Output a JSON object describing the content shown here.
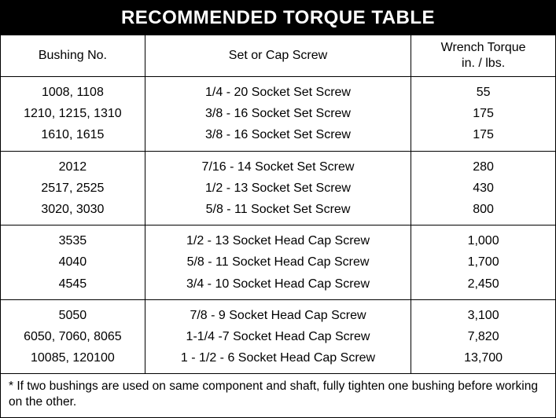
{
  "title": "RECOMMENDED TORQUE TABLE",
  "columns": {
    "c0": "Bushing No.",
    "c1": "Set or Cap Screw",
    "c2": "Wrench Torque\nin. / lbs."
  },
  "groups": [
    {
      "rows": [
        {
          "bushing": "1008, 1108",
          "screw": "1/4 - 20 Socket Set Screw",
          "torque": "55"
        },
        {
          "bushing": "1210, 1215, 1310",
          "screw": "3/8 - 16 Socket Set Screw",
          "torque": "175"
        },
        {
          "bushing": "1610, 1615",
          "screw": "3/8 - 16 Socket Set Screw",
          "torque": "175"
        }
      ]
    },
    {
      "rows": [
        {
          "bushing": "2012",
          "screw": "7/16 - 14 Socket Set Screw",
          "torque": "280"
        },
        {
          "bushing": "2517, 2525",
          "screw": "1/2 - 13 Socket Set Screw",
          "torque": "430"
        },
        {
          "bushing": "3020, 3030",
          "screw": "5/8 - 11 Socket Set Screw",
          "torque": "800"
        }
      ]
    },
    {
      "rows": [
        {
          "bushing": "3535",
          "screw": "1/2 - 13 Socket Head Cap Screw",
          "torque": "1,000"
        },
        {
          "bushing": "4040",
          "screw": "5/8 - 11 Socket Head Cap Screw",
          "torque": "1,700"
        },
        {
          "bushing": "4545",
          "screw": "3/4 - 10 Socket Head Cap Screw",
          "torque": "2,450"
        }
      ]
    },
    {
      "rows": [
        {
          "bushing": "5050",
          "screw": "7/8 - 9 Socket Head Cap Screw",
          "torque": "3,100"
        },
        {
          "bushing": "6050, 7060, 8065",
          "screw": "1-1/4 -7 Socket Head Cap Screw",
          "torque": "7,820"
        },
        {
          "bushing": "10085, 120100",
          "screw": "1 - 1/2 - 6 Socket Head Cap Screw",
          "torque": "13,700"
        }
      ]
    }
  ],
  "footnote": "* If two bushings are used on same component and shaft, fully tighten one bushing before working on the other."
}
